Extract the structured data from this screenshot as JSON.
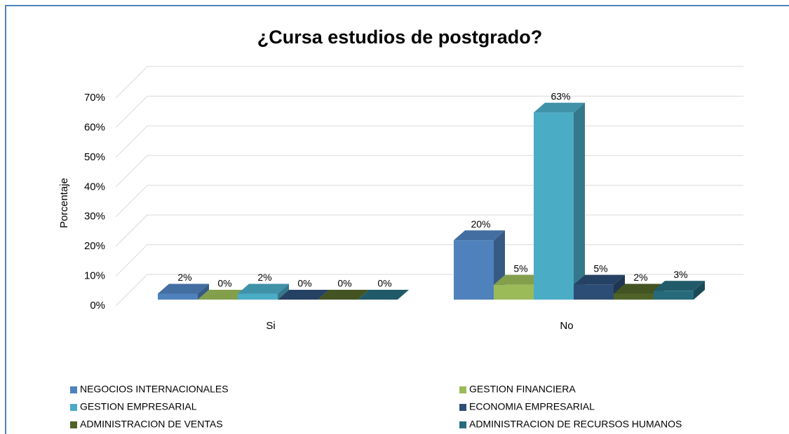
{
  "chart_data": {
    "type": "bar3d",
    "title": "¿Cursa estudios de postgrado?",
    "y_label": "Porcentaje",
    "categories": [
      "Si",
      "No"
    ],
    "series": [
      {
        "name": "NEGOCIOS INTERNACIONALES",
        "color": "#4f81bd",
        "values": [
          2,
          20
        ],
        "value_labels": [
          "2%",
          "20%"
        ]
      },
      {
        "name": "GESTION FINANCIERA",
        "color": "#9bbb59",
        "values": [
          0,
          5
        ],
        "value_labels": [
          "0%",
          "5%"
        ]
      },
      {
        "name": "GESTION EMPRESARIAL",
        "color": "#4bacc6",
        "values": [
          2,
          63
        ],
        "value_labels": [
          "2%",
          "63%"
        ]
      },
      {
        "name": "ECONOMIA EMPRESARIAL",
        "color": "#2c4d75",
        "values": [
          0,
          5
        ],
        "value_labels": [
          "0%",
          "5%"
        ]
      },
      {
        "name": "ADMINISTRACION DE VENTAS",
        "color": "#4f6228",
        "values": [
          0,
          2
        ],
        "value_labels": [
          "0%",
          "2%"
        ]
      },
      {
        "name": "ADMINISTRACION DE RECURSOS HUMANOS",
        "color": "#276a7c",
        "values": [
          0,
          3
        ],
        "value_labels": [
          "0%",
          "3%"
        ]
      }
    ],
    "ylim": [
      0,
      70
    ],
    "yticks": [
      {
        "value": 0,
        "label": "0%"
      },
      {
        "value": 10,
        "label": "10%"
      },
      {
        "value": 20,
        "label": "20%"
      },
      {
        "value": 30,
        "label": "30%"
      },
      {
        "value": 40,
        "label": "40%"
      },
      {
        "value": 50,
        "label": "50%"
      },
      {
        "value": 60,
        "label": "60%"
      },
      {
        "value": 70,
        "label": "70%"
      }
    ],
    "grid": true,
    "legend": "bottom"
  }
}
